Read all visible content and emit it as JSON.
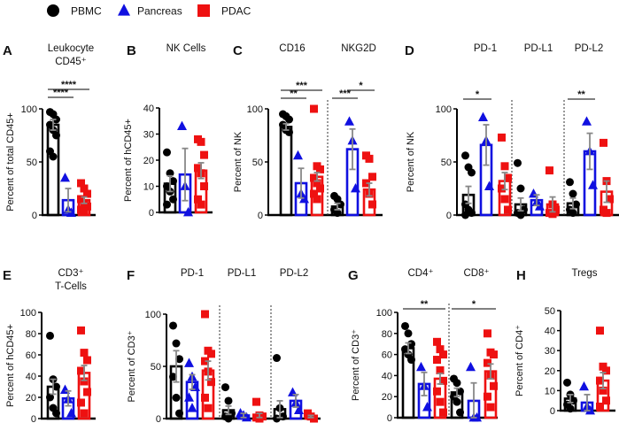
{
  "legend": [
    {
      "name": "PBMC",
      "marker": "circle",
      "color": "#000000"
    },
    {
      "name": "Pancreas",
      "marker": "triangle",
      "color": "#1010e0"
    },
    {
      "name": "PDAC",
      "marker": "square",
      "color": "#ee1111"
    }
  ],
  "colors": {
    "error_bar": "#888888",
    "divider": "#333333"
  },
  "chart_data": [
    {
      "panel": "A",
      "type": "bar",
      "titles": [
        [
          "Leukocyte",
          "CD45⁺"
        ]
      ],
      "ylabel": "Percent of total CD45+",
      "ylim": [
        0,
        100
      ],
      "yticks": [
        0,
        50,
        100
      ],
      "groups": [
        {
          "bars": [
            {
              "series": "PBMC",
              "mean": 85,
              "sem": 5,
              "points": [
                97,
                95,
                90,
                85,
                80,
                75,
                60,
                55
              ]
            },
            {
              "series": "Pancreas",
              "mean": 14,
              "sem": 11,
              "points": [
                35,
                5,
                2
              ]
            },
            {
              "series": "PDAC",
              "mean": 14,
              "sem": 3,
              "points": [
                30,
                25,
                20,
                15,
                10,
                8,
                5,
                3
              ]
            }
          ]
        }
      ],
      "significance": [
        {
          "group": 0,
          "from": 0,
          "to": 1,
          "label": "****"
        },
        {
          "group": 0,
          "from": 0,
          "to": 2,
          "label": "****"
        }
      ]
    },
    {
      "panel": "B",
      "type": "bar",
      "titles": [
        [
          "NK Cells"
        ]
      ],
      "ylabel": "Percent of hCD45+",
      "ylim": [
        0,
        40
      ],
      "yticks": [
        0,
        10,
        20,
        30,
        40
      ],
      "groups": [
        {
          "bars": [
            {
              "series": "PBMC",
              "mean": 11,
              "sem": 3,
              "points": [
                23,
                15,
                12,
                10,
                8,
                5,
                3
              ]
            },
            {
              "series": "Pancreas",
              "mean": 14.5,
              "sem": 10,
              "points": [
                33,
                10,
                0
              ]
            },
            {
              "series": "PDAC",
              "mean": 16,
              "sem": 3,
              "points": [
                28,
                27,
                22,
                17,
                15,
                10,
                5,
                3
              ]
            }
          ]
        }
      ],
      "significance": []
    },
    {
      "panel": "C",
      "type": "bar",
      "titles": [
        [
          "CD16"
        ],
        [
          "NKG2D"
        ]
      ],
      "ylabel": "Percent of NK",
      "ylim": [
        0,
        100
      ],
      "yticks": [
        0,
        50,
        100
      ],
      "groups": [
        {
          "bars": [
            {
              "series": "PBMC",
              "mean": 83,
              "sem": 3,
              "points": [
                95,
                93,
                90,
                85,
                80,
                78
              ]
            },
            {
              "series": "Pancreas",
              "mean": 30,
              "sem": 14,
              "points": [
                56,
                20,
                15
              ]
            },
            {
              "series": "PDAC",
              "mean": 36,
              "sem": 4,
              "points": [
                100,
                46,
                43,
                35,
                30,
                25,
                20,
                15
              ]
            }
          ]
        },
        {
          "bars": [
            {
              "series": "PBMC",
              "mean": 8,
              "sem": 3,
              "points": [
                18,
                15,
                10,
                5,
                2
              ]
            },
            {
              "series": "Pancreas",
              "mean": 62,
              "sem": 19,
              "points": [
                88,
                70,
                25
              ]
            },
            {
              "series": "PDAC",
              "mean": 24,
              "sem": 6,
              "points": [
                56,
                53,
                36,
                30,
                20,
                10
              ]
            }
          ]
        }
      ],
      "significance": [
        {
          "group": 0,
          "from": 0,
          "to": 1,
          "label": "**"
        },
        {
          "group": 0,
          "from": 0,
          "to": 2,
          "label": "***"
        },
        {
          "group": 1,
          "from": 0,
          "to": 1,
          "label": "***"
        },
        {
          "group": 1,
          "from": 1,
          "to": 2,
          "label": "*"
        }
      ]
    },
    {
      "panel": "D",
      "type": "bar",
      "titles": [
        [
          "PD-1"
        ],
        [
          "PD-L1"
        ],
        [
          "PD-L2"
        ]
      ],
      "ylabel": "Percent of NK",
      "ylim": [
        0,
        100
      ],
      "yticks": [
        0,
        50,
        100
      ],
      "groups": [
        {
          "bars": [
            {
              "series": "PBMC",
              "mean": 19,
              "sem": 8,
              "points": [
                56,
                45,
                40,
                10,
                5,
                2,
                0
              ]
            },
            {
              "series": "Pancreas",
              "mean": 66,
              "sem": 19,
              "points": [
                92,
                70,
                27
              ]
            },
            {
              "series": "PDAC",
              "mean": 32,
              "sem": 8,
              "points": [
                73,
                46,
                35,
                25,
                15,
                5
              ]
            }
          ]
        },
        {
          "bars": [
            {
              "series": "PBMC",
              "mean": 10,
              "sem": 6,
              "points": [
                49,
                25,
                5,
                2,
                0
              ]
            },
            {
              "series": "Pancreas",
              "mean": 14,
              "sem": 5,
              "points": [
                20,
                12,
                8
              ]
            },
            {
              "series": "PDAC",
              "mean": 10,
              "sem": 7,
              "points": [
                42,
                10,
                5,
                2,
                1
              ]
            }
          ]
        },
        {
          "bars": [
            {
              "series": "PBMC",
              "mean": 11,
              "sem": 5,
              "points": [
                31,
                20,
                10,
                5,
                2
              ]
            },
            {
              "series": "Pancreas",
              "mean": 60,
              "sem": 17,
              "points": [
                88,
                60,
                28
              ]
            },
            {
              "series": "PDAC",
              "mean": 22,
              "sem": 10,
              "points": [
                68,
                32,
                15,
                5,
                2
              ]
            }
          ]
        }
      ],
      "significance": [
        {
          "group": 0,
          "from": 0,
          "to": 1,
          "label": "*"
        },
        {
          "group": 2,
          "from": 0,
          "to": 1,
          "label": "**"
        }
      ]
    },
    {
      "panel": "E",
      "type": "bar",
      "titles": [
        [
          "CD3⁺",
          "T-Cells"
        ]
      ],
      "ylabel": "Percent of hCD45+",
      "ylim": [
        0,
        100
      ],
      "yticks": [
        0,
        20,
        40,
        60,
        80,
        100
      ],
      "groups": [
        {
          "bars": [
            {
              "series": "PBMC",
              "mean": 30,
              "sem": 7,
              "points": [
                78,
                37,
                30,
                20,
                10,
                5
              ]
            },
            {
              "series": "Pancreas",
              "mean": 19,
              "sem": 7,
              "points": [
                27,
                18,
                5
              ]
            },
            {
              "series": "PDAC",
              "mean": 43,
              "sem": 7,
              "points": [
                83,
                62,
                55,
                45,
                35,
                25,
                15,
                5
              ]
            }
          ]
        }
      ],
      "significance": []
    },
    {
      "panel": "F",
      "type": "bar",
      "titles": [
        [
          "PD-1"
        ],
        [
          "PD-L1"
        ],
        [
          "PD-L2"
        ]
      ],
      "ylabel": "Percent of CD3⁺",
      "ylim": [
        0,
        100
      ],
      "yticks": [
        0,
        50,
        100
      ],
      "groups": [
        {
          "bars": [
            {
              "series": "PBMC",
              "mean": 50,
              "sem": 15,
              "points": [
                89,
                72,
                57,
                40,
                20,
                5
              ]
            },
            {
              "series": "Pancreas",
              "mean": 35,
              "sem": 7,
              "points": [
                53,
                40,
                30,
                20,
                10
              ]
            },
            {
              "series": "PDAC",
              "mean": 46,
              "sem": 9,
              "points": [
                100,
                65,
                62,
                55,
                45,
                35,
                20,
                10
              ]
            }
          ]
        },
        {
          "bars": [
            {
              "series": "PBMC",
              "mean": 8,
              "sem": 4,
              "points": [
                30,
                17,
                5,
                2,
                0
              ]
            },
            {
              "series": "Pancreas",
              "mean": 3,
              "sem": 2,
              "points": [
                5,
                3,
                1
              ]
            },
            {
              "series": "PDAC",
              "mean": 3,
              "sem": 2,
              "points": [
                16,
                3,
                2,
                1,
                0
              ]
            }
          ]
        },
        {
          "bars": [
            {
              "series": "PBMC",
              "mean": 9,
              "sem": 8,
              "points": [
                58,
                10,
                2,
                0
              ]
            },
            {
              "series": "Pancreas",
              "mean": 17,
              "sem": 6,
              "points": [
                25,
                15,
                8
              ]
            },
            {
              "series": "PDAC",
              "mean": 2,
              "sem": 1,
              "points": [
                5,
                2,
                0
              ]
            }
          ]
        }
      ],
      "significance": []
    },
    {
      "panel": "G",
      "type": "bar",
      "titles": [
        [
          "CD4⁺"
        ],
        [
          "CD8⁺"
        ]
      ],
      "ylabel": "Percent of CD3⁺",
      "ylim": [
        0,
        100
      ],
      "yticks": [
        0,
        20,
        40,
        60,
        80,
        100
      ],
      "groups": [
        {
          "bars": [
            {
              "series": "PBMC",
              "mean": 66,
              "sem": 5,
              "points": [
                87,
                80,
                70,
                65,
                60,
                55
              ]
            },
            {
              "series": "Pancreas",
              "mean": 32,
              "sem": 11,
              "points": [
                48,
                30,
                10
              ]
            },
            {
              "series": "PDAC",
              "mean": 37,
              "sem": 5,
              "points": [
                72,
                65,
                60,
                55,
                45,
                35,
                25,
                15,
                5
              ]
            }
          ]
        },
        {
          "bars": [
            {
              "series": "PBMC",
              "mean": 24,
              "sem": 4,
              "points": [
                37,
                33,
                25,
                20,
                15,
                5
              ]
            },
            {
              "series": "Pancreas",
              "mean": 16,
              "sem": 17,
              "points": [
                48,
                0,
                0
              ]
            },
            {
              "series": "PDAC",
              "mean": 44,
              "sem": 7,
              "points": [
                80,
                62,
                60,
                52,
                40,
                30,
                20,
                10
              ]
            }
          ]
        }
      ],
      "significance": [
        {
          "group": 0,
          "from": 0,
          "to": 2,
          "label": "**"
        },
        {
          "group": 1,
          "from": 0,
          "to": 2,
          "label": "*"
        }
      ]
    },
    {
      "panel": "H",
      "type": "bar",
      "titles": [
        [
          "Tregs"
        ]
      ],
      "ylabel": "Percent of CD4⁺",
      "ylim": [
        0,
        50
      ],
      "yticks": [
        0,
        10,
        20,
        30,
        40,
        50
      ],
      "groups": [
        {
          "bars": [
            {
              "series": "PBMC",
              "mean": 6,
              "sem": 2,
              "points": [
                14,
                8,
                5,
                3,
                1
              ]
            },
            {
              "series": "Pancreas",
              "mean": 4,
              "sem": 4,
              "points": [
                12,
                2,
                0
              ]
            },
            {
              "series": "PDAC",
              "mean": 15,
              "sem": 4,
              "points": [
                40,
                22,
                20,
                15,
                10,
                5,
                2
              ]
            }
          ]
        }
      ],
      "significance": []
    }
  ]
}
